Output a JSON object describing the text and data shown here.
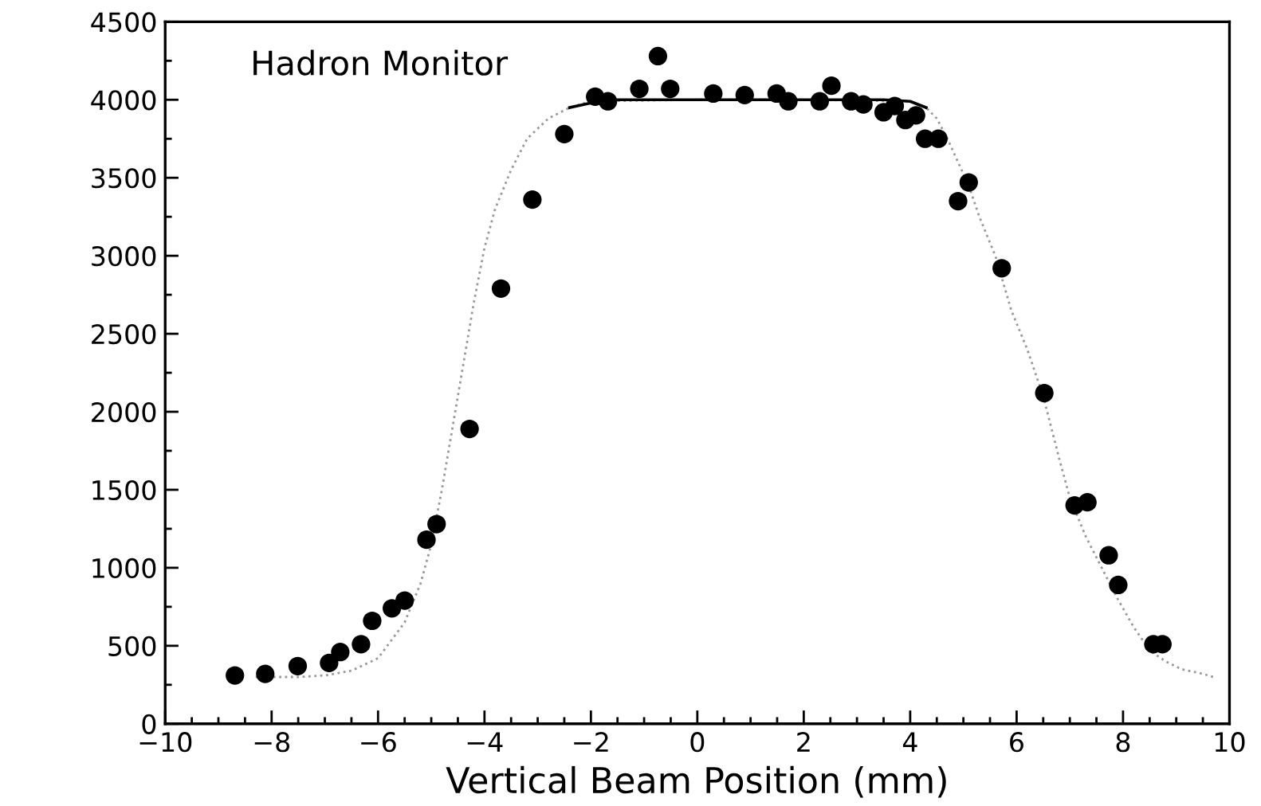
{
  "chart_data": {
    "type": "scatter",
    "title": "Hadron Monitor",
    "xlabel": "Vertical Beam Position (mm)",
    "xlim": [
      -10,
      10
    ],
    "ylim": [
      0,
      4500
    ],
    "xticks": [
      {
        "value": -10,
        "label": "−10"
      },
      {
        "value": -9.5,
        "label": null
      },
      {
        "value": -9,
        "label": null
      },
      {
        "value": -8.5,
        "label": null
      },
      {
        "value": -8,
        "label": "−8"
      },
      {
        "value": -7.5,
        "label": null
      },
      {
        "value": -7,
        "label": null
      },
      {
        "value": -6.5,
        "label": null
      },
      {
        "value": -6,
        "label": "−6"
      },
      {
        "value": -5.5,
        "label": null
      },
      {
        "value": -5,
        "label": null
      },
      {
        "value": -4.5,
        "label": null
      },
      {
        "value": -4,
        "label": "−4"
      },
      {
        "value": -3.5,
        "label": null
      },
      {
        "value": -3,
        "label": null
      },
      {
        "value": -2.5,
        "label": null
      },
      {
        "value": -2,
        "label": "−2"
      },
      {
        "value": -1.5,
        "label": null
      },
      {
        "value": -1,
        "label": null
      },
      {
        "value": -0.5,
        "label": null
      },
      0,
      {
        "value": 0.5,
        "label": null
      },
      {
        "value": 1,
        "label": null
      },
      {
        "value": 1.5,
        "label": null
      },
      2,
      {
        "value": 2.5,
        "label": null
      },
      {
        "value": 3,
        "label": null
      },
      {
        "value": 3.5,
        "label": null
      },
      4,
      {
        "value": 4.5,
        "label": null
      },
      {
        "value": 5,
        "label": null
      },
      {
        "value": 5.5,
        "label": null
      },
      6,
      {
        "value": 6.5,
        "label": null
      },
      {
        "value": 7,
        "label": null
      },
      {
        "value": 7.5,
        "label": null
      },
      8,
      {
        "value": 8.5,
        "label": null
      },
      {
        "value": 9,
        "label": null
      },
      {
        "value": 9.5,
        "label": null
      },
      10
    ],
    "yticks": [
      0,
      {
        "value": 250,
        "label": null
      },
      500,
      {
        "value": 750,
        "label": null
      },
      1000,
      {
        "value": 1250,
        "label": null
      },
      1500,
      {
        "value": 1750,
        "label": null
      },
      2000,
      {
        "value": 2250,
        "label": null
      },
      2500,
      {
        "value": 2750,
        "label": null
      },
      3000,
      {
        "value": 3250,
        "label": null
      },
      3500,
      {
        "value": 3750,
        "label": null
      },
      4000,
      {
        "value": 4250,
        "label": null
      },
      4500
    ],
    "grid": false,
    "legend": false,
    "series": [
      {
        "type": "line",
        "line_style": "dotted",
        "marker": "none",
        "color": "#999999",
        "x": [
          -8.3,
          -7.5,
          -7,
          -6.5,
          -6,
          -5.5,
          -5.2,
          -5,
          -4.8,
          -4.6,
          -4.4,
          -4.2,
          -4,
          -3.8,
          -3.5,
          -3.2,
          -2.8,
          -2.4,
          -2,
          0,
          2,
          4,
          4.3,
          4.5,
          4.7,
          4.9,
          5.1,
          5.3,
          5.6,
          5.9,
          6.2,
          6.5,
          6.8,
          7,
          7.3,
          7.6,
          7.9,
          8.2,
          8.5,
          8.8,
          9.1,
          9.5,
          9.7
        ],
        "values": [
          300,
          300,
          310,
          340,
          420,
          650,
          900,
          1150,
          1500,
          1900,
          2300,
          2700,
          3050,
          3300,
          3550,
          3750,
          3880,
          3950,
          3990,
          4000,
          4000,
          3990,
          3950,
          3880,
          3750,
          3600,
          3450,
          3250,
          3000,
          2650,
          2400,
          2100,
          1700,
          1450,
          1200,
          1000,
          800,
          620,
          470,
          400,
          350,
          320,
          300
        ]
      },
      {
        "type": "line",
        "color": "#000000",
        "line_style": "solid",
        "marker": "none",
        "x": [
          -2.4,
          -2,
          -1.5,
          0,
          2,
          3.5,
          4,
          4.3
        ],
        "values": [
          3950,
          3980,
          4000,
          4000,
          4000,
          4000,
          3990,
          3950
        ]
      },
      {
        "marker": "circle",
        "color": "#000000",
        "x": [
          -8.69,
          -8.12,
          -7.51,
          -6.92,
          -6.71,
          -6.32,
          -6.11,
          -5.74,
          -5.5,
          -5.09,
          -4.9,
          -4.28,
          -3.69,
          -3.1,
          -2.5,
          -1.92,
          -1.68,
          -1.09,
          -0.74,
          -0.51,
          0.3,
          0.89,
          1.49,
          1.71,
          2.3,
          2.52,
          2.89,
          3.12,
          3.5,
          3.71,
          3.91,
          4.11,
          4.28,
          4.53,
          4.9,
          5.1,
          5.72,
          6.52,
          7.09,
          7.33,
          7.73,
          7.91,
          8.57,
          8.74
        ],
        "values": [
          310,
          320,
          370,
          390,
          460,
          510,
          660,
          740,
          790,
          1180,
          1280,
          1890,
          2790,
          3360,
          3780,
          4020,
          3990,
          4070,
          4280,
          4070,
          4040,
          4030,
          4040,
          3990,
          3990,
          4090,
          3990,
          3970,
          3920,
          3960,
          3870,
          3900,
          3750,
          3750,
          3350,
          3470,
          2920,
          2120,
          1400,
          1420,
          1080,
          890,
          510,
          510
        ]
      }
    ]
  }
}
